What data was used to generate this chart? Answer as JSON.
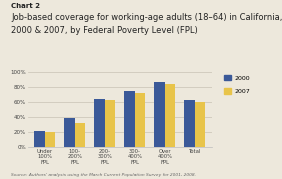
{
  "categories": [
    "Under\n100%\nFPL",
    "100-\n200%\nFPL",
    "200-\n300%\nFPL",
    "300-\n400%\nFPL",
    "Over\n400%\nFPL",
    "Total"
  ],
  "values_2000": [
    21,
    38,
    64,
    74,
    86,
    62
  ],
  "values_2007": [
    20,
    31,
    62,
    72,
    84,
    59
  ],
  "color_2000": "#3b5998",
  "color_2007": "#e8c44a",
  "ylim": [
    0,
    100
  ],
  "yticks": [
    0,
    20,
    40,
    60,
    80,
    100
  ],
  "ytick_labels": [
    "0%",
    "20%",
    "40%",
    "60%",
    "80%",
    "100%"
  ],
  "chart_label": "Chart 2",
  "title_line1": "Job-based coverage for working-age adults (18–64) in California,",
  "title_line2": "2000 & 2007, by Federal Poverty Level (FPL)",
  "source": "Source: Authors' analysis using the March Current Population Survey for 2001, 2008.",
  "legend_2000": "2000",
  "legend_2007": "2007",
  "bar_width": 0.35,
  "background_color": "#ede8dc"
}
